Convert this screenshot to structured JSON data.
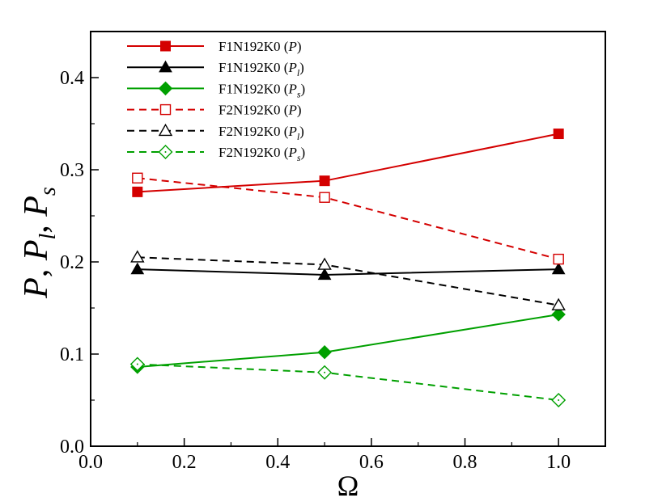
{
  "chart_data": {
    "type": "line",
    "title": "",
    "xlabel": "Ω",
    "ylabel": "P, P_l, P_s",
    "ylabel_parts": {
      "p1": "P",
      "sep1": ", ",
      "p2": "P",
      "sub2": "l",
      "sep2": ", ",
      "p3": "P",
      "sub3": "s"
    },
    "xlim": [
      0.0,
      1.1
    ],
    "ylim": [
      0.0,
      0.45
    ],
    "xticks": [
      0.0,
      0.2,
      0.4,
      0.6,
      0.8,
      1.0
    ],
    "xtick_labels": [
      "0.0",
      "0.2",
      "0.4",
      "0.6",
      "0.8",
      "1.0"
    ],
    "yticks": [
      0.0,
      0.1,
      0.2,
      0.3,
      0.4
    ],
    "ytick_labels": [
      "0.0",
      "0.1",
      "0.2",
      "0.3",
      "0.4"
    ],
    "grid": false,
    "legend_position": "top-left",
    "x": [
      0.1,
      0.5,
      1.0
    ],
    "series": [
      {
        "name": "F1N192K0 (P)",
        "base": "F1N192K0",
        "var": "P",
        "sub": "",
        "color": "#d40000",
        "dash": "solid",
        "marker": "square",
        "filled": true,
        "values": [
          0.276,
          0.288,
          0.339
        ]
      },
      {
        "name": "F1N192K0 (P_l)",
        "base": "F1N192K0",
        "var": "P",
        "sub": "l",
        "color": "#000000",
        "dash": "solid",
        "marker": "triangle",
        "filled": true,
        "values": [
          0.192,
          0.186,
          0.192
        ]
      },
      {
        "name": "F1N192K0 (P_s)",
        "base": "F1N192K0",
        "var": "P",
        "sub": "s",
        "color": "#00a000",
        "dash": "solid",
        "marker": "diamond",
        "filled": true,
        "values": [
          0.086,
          0.102,
          0.143
        ]
      },
      {
        "name": "F2N192K0 (P)",
        "base": "F2N192K0",
        "var": "P",
        "sub": "",
        "color": "#d40000",
        "dash": "dashed",
        "marker": "square",
        "filled": false,
        "values": [
          0.291,
          0.27,
          0.203
        ]
      },
      {
        "name": "F2N192K0 (P_l)",
        "base": "F2N192K0",
        "var": "P",
        "sub": "l",
        "color": "#000000",
        "dash": "dashed",
        "marker": "triangle",
        "filled": false,
        "values": [
          0.205,
          0.197,
          0.153
        ]
      },
      {
        "name": "F2N192K0 (P_s)",
        "base": "F2N192K0",
        "var": "P",
        "sub": "s",
        "color": "#00a000",
        "dash": "dashed",
        "marker": "diamond",
        "filled": false,
        "values": [
          0.089,
          0.08,
          0.05
        ]
      }
    ]
  }
}
